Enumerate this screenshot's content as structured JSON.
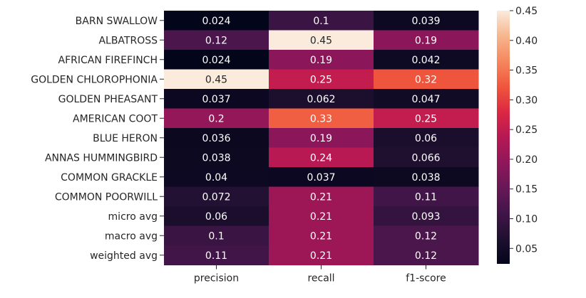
{
  "chart_data": {
    "type": "heatmap",
    "title": "",
    "xlabel": "",
    "ylabel": "",
    "columns": [
      "precision",
      "recall",
      "f1-score"
    ],
    "rows": [
      "BARN SWALLOW",
      "ALBATROSS",
      "AFRICAN FIREFINCH",
      "GOLDEN CHLOROPHONIA",
      "GOLDEN PHEASANT",
      "AMERICAN COOT",
      "BLUE HERON",
      "ANNAS HUMMINGBIRD",
      "COMMON GRACKLE",
      "COMMON POORWILL",
      "micro avg",
      "macro avg",
      "weighted avg"
    ],
    "values": [
      [
        0.024,
        0.1,
        0.039
      ],
      [
        0.12,
        0.45,
        0.19
      ],
      [
        0.024,
        0.19,
        0.042
      ],
      [
        0.45,
        0.25,
        0.32
      ],
      [
        0.037,
        0.062,
        0.047
      ],
      [
        0.2,
        0.33,
        0.25
      ],
      [
        0.036,
        0.19,
        0.06
      ],
      [
        0.038,
        0.24,
        0.066
      ],
      [
        0.04,
        0.037,
        0.038
      ],
      [
        0.072,
        0.21,
        0.11
      ],
      [
        0.06,
        0.21,
        0.093
      ],
      [
        0.1,
        0.21,
        0.12
      ],
      [
        0.11,
        0.21,
        0.12
      ]
    ],
    "colorscale": "rocket",
    "vmin": 0.024,
    "vmax": 0.45,
    "colorbar_ticks": [
      "0.05",
      "0.10",
      "0.15",
      "0.20",
      "0.25",
      "0.30",
      "0.35",
      "0.40",
      "0.45"
    ],
    "colorbar_tick_values": [
      0.05,
      0.1,
      0.15,
      0.2,
      0.25,
      0.3,
      0.35,
      0.4,
      0.45
    ],
    "grid": false,
    "colorbar_position": "right"
  }
}
